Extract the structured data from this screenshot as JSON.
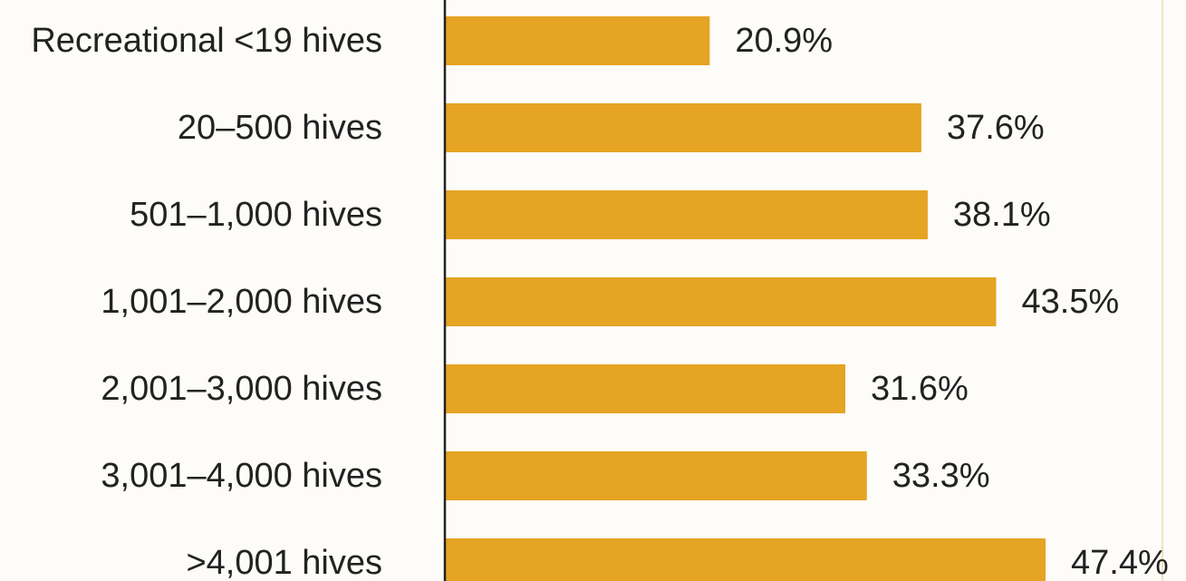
{
  "chart_data": {
    "type": "bar",
    "orientation": "horizontal",
    "categories": [
      "Recreational <19 hives",
      "20–500 hives",
      "501–1,000 hives",
      "1,001–2,000 hives",
      "2,001–3,000 hives",
      "3,001–4,000 hives",
      ">4,001 hives"
    ],
    "values": [
      20.9,
      37.6,
      38.1,
      43.5,
      31.6,
      33.3,
      47.4
    ],
    "value_labels": [
      "20.9%",
      "37.6%",
      "38.1%",
      "43.5%",
      "31.6%",
      "33.3%",
      "47.4%"
    ],
    "title": "",
    "xlabel": "",
    "ylabel": "",
    "grid": false,
    "legend": "none",
    "bar_color": "#E5A424",
    "axis_color": "#222222",
    "edge_line_color": "#F3E3BE"
  }
}
